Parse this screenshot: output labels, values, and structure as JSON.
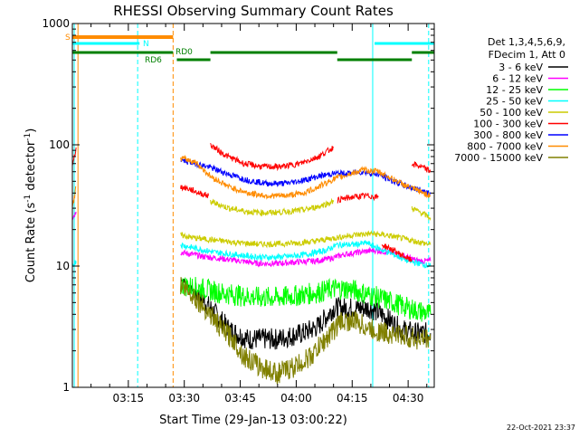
{
  "chart_data": {
    "type": "line",
    "title": "RHESSI Observing Summary Count Rates",
    "xlabel": "Start Time (29-Jan-13 03:00:22)",
    "ylabel_main": "Count Rate (s",
    "ylabel_sup1": "-1",
    "ylabel_mid": " detector",
    "ylabel_sup2": "-1",
    "ylabel_end": ")",
    "yscale": "log",
    "ylim": [
      1,
      1000
    ],
    "y_ticks": [
      {
        "value": 1,
        "label": "1"
      },
      {
        "value": 10,
        "label": "10"
      },
      {
        "value": 100,
        "label": "100"
      },
      {
        "value": 1000,
        "label": "1000"
      }
    ],
    "xlim_minutes": [
      0,
      97
    ],
    "x_ticks": [
      {
        "minute": 15,
        "label": "03:15"
      },
      {
        "minute": 30,
        "label": "03:30"
      },
      {
        "minute": 45,
        "label": "03:45"
      },
      {
        "minute": 60,
        "label": "04:00"
      },
      {
        "minute": 75,
        "label": "04:15"
      },
      {
        "minute": 90,
        "label": "04:30"
      }
    ],
    "legend": {
      "placement": "right",
      "header": [
        "Det 1,3,4,5,6,9,",
        "FDecim 1, Att 0"
      ],
      "entries": [
        {
          "label": "3 - 6 keV",
          "color": "#000000"
        },
        {
          "label": "6 - 12 keV",
          "color": "#ff00ff"
        },
        {
          "label": "12 - 25 keV",
          "color": "#00ff00"
        },
        {
          "label": "25 - 50 keV",
          "color": "#00ffff"
        },
        {
          "label": "50 - 100 keV",
          "color": "#cccc00"
        },
        {
          "label": "100 - 300 keV",
          "color": "#ff0000"
        },
        {
          "label": "300 - 800 keV",
          "color": "#0000ff"
        },
        {
          "label": "800 - 7000 keV",
          "color": "#ff8c00"
        },
        {
          "label": "7000 - 15000 keV",
          "color": "#808000"
        }
      ]
    },
    "flags": [
      {
        "label": "S",
        "color": "#ff8c00",
        "segments": [
          [
            0,
            27
          ]
        ]
      },
      {
        "label": "N",
        "color": "#00ffff",
        "segments": [
          [
            0,
            18
          ],
          [
            81,
            97
          ]
        ]
      },
      {
        "label": "RD6",
        "color": "#008000",
        "segments": [
          [
            0,
            27
          ],
          [
            28,
            37
          ]
        ]
      },
      {
        "label": "RD0",
        "color": "#008000",
        "segments": [
          [
            37,
            71
          ],
          [
            71,
            91
          ],
          [
            91,
            97
          ]
        ]
      }
    ],
    "vlines": [
      {
        "minute": 0.5,
        "color": "#00ffff",
        "style": "solid"
      },
      {
        "minute": 1.5,
        "color": "#ff8c00",
        "style": "solid"
      },
      {
        "minute": 17.5,
        "color": "#00ffff",
        "style": "dashed"
      },
      {
        "minute": 27,
        "color": "#ff8c00",
        "style": "dashed"
      },
      {
        "minute": 80.5,
        "color": "#00ffff",
        "style": "solid"
      },
      {
        "minute": 95.5,
        "color": "#00ffff",
        "style": "dashed"
      }
    ],
    "series": [
      {
        "name": "3 - 6 keV",
        "color": "#000000",
        "segments": [
          [
            [
              29,
              8
            ],
            [
              33,
              6
            ],
            [
              37,
              4.5
            ],
            [
              42,
              3
            ],
            [
              47,
              2.5
            ],
            [
              55,
              2.5
            ],
            [
              62,
              2.8
            ],
            [
              66,
              3.2
            ],
            [
              70,
              4.5
            ],
            [
              75,
              4.5
            ],
            [
              80,
              4.5
            ],
            [
              84,
              3.8
            ],
            [
              88,
              3
            ],
            [
              92,
              2.8
            ],
            [
              96,
              2.8
            ]
          ]
        ]
      },
      {
        "name": "6 - 12 keV",
        "color": "#ff00ff",
        "segments": [
          [
            [
              0,
              25
            ],
            [
              1,
              28
            ]
          ],
          [
            [
              29,
              13
            ],
            [
              35,
              12
            ],
            [
              40,
              11.5
            ],
            [
              45,
              11
            ],
            [
              50,
              10.5
            ],
            [
              55,
              10.5
            ],
            [
              60,
              10.8
            ],
            [
              65,
              11
            ],
            [
              69,
              11.5
            ],
            [
              73,
              12.5
            ],
            [
              77,
              13
            ],
            [
              81,
              13.5
            ],
            [
              85,
              13
            ],
            [
              89,
              12
            ],
            [
              93,
              11
            ],
            [
              96,
              11
            ]
          ]
        ]
      },
      {
        "name": "12 - 25 keV",
        "color": "#00ff00",
        "segments": [
          [
            [
              29,
              7
            ],
            [
              35,
              6.5
            ],
            [
              40,
              6
            ],
            [
              45,
              5.7
            ],
            [
              50,
              5.5
            ],
            [
              55,
              5.5
            ],
            [
              60,
              5.7
            ],
            [
              65,
              6
            ],
            [
              70,
              6.5
            ],
            [
              74,
              6.5
            ],
            [
              78,
              6
            ],
            [
              82,
              5.5
            ],
            [
              86,
              5
            ],
            [
              90,
              4.5
            ],
            [
              96,
              4
            ]
          ]
        ]
      },
      {
        "name": "25 - 50 keV",
        "color": "#00ffff",
        "segments": [
          [
            [
              0,
              10
            ],
            [
              1,
              11
            ]
          ],
          [
            [
              29,
              15
            ],
            [
              33,
              14
            ],
            [
              38,
              13
            ],
            [
              43,
              12.5
            ],
            [
              48,
              12
            ],
            [
              53,
              11.8
            ],
            [
              58,
              12
            ],
            [
              63,
              12.5
            ],
            [
              68,
              13.5
            ],
            [
              71,
              15
            ],
            [
              75,
              15
            ],
            [
              79,
              15.5
            ],
            [
              82,
              14
            ],
            [
              86,
              12.5
            ],
            [
              90,
              11
            ],
            [
              96,
              10
            ]
          ]
        ]
      },
      {
        "name": "50 - 100 keV",
        "color": "#cccc00",
        "segments": [
          [
            [
              29,
              18
            ],
            [
              33,
              17
            ],
            [
              37,
              16.5
            ],
            [
              41,
              16
            ],
            [
              45,
              15.5
            ],
            [
              50,
              15.2
            ],
            [
              55,
              15.2
            ],
            [
              60,
              15.5
            ],
            [
              65,
              16
            ],
            [
              70,
              17
            ],
            [
              75,
              18
            ],
            [
              80,
              18.5
            ],
            [
              84,
              18
            ],
            [
              88,
              17
            ],
            [
              92,
              16
            ],
            [
              96,
              15
            ]
          ],
          [
            [
              37,
              34
            ],
            [
              42,
              30
            ],
            [
              47,
              28
            ],
            [
              52,
              27.5
            ],
            [
              57,
              28
            ],
            [
              62,
              29
            ],
            [
              66,
              31
            ],
            [
              70,
              34
            ]
          ],
          [
            [
              91,
              30
            ],
            [
              94,
              27
            ],
            [
              96,
              25
            ]
          ]
        ]
      },
      {
        "name": "100 - 300 keV",
        "color": "#ff0000",
        "segments": [
          [
            [
              0,
              65
            ],
            [
              1,
              95
            ]
          ],
          [
            [
              29,
              45
            ],
            [
              31.5,
              43
            ],
            [
              34,
              40
            ],
            [
              36.5,
              38
            ]
          ],
          [
            [
              37,
              100
            ],
            [
              41,
              82
            ],
            [
              46,
              70
            ],
            [
              51,
              66
            ],
            [
              56,
              66
            ],
            [
              61,
              70
            ],
            [
              66,
              80
            ],
            [
              70,
              95
            ]
          ],
          [
            [
              71,
              35
            ],
            [
              75,
              37
            ],
            [
              79,
              38
            ],
            [
              82,
              37
            ]
          ],
          [
            [
              83,
              15
            ],
            [
              86,
              13.5
            ],
            [
              89,
              12
            ],
            [
              91,
              11
            ]
          ],
          [
            [
              91,
              70
            ],
            [
              94,
              65
            ],
            [
              96,
              60
            ]
          ]
        ]
      },
      {
        "name": "300 - 800 keV",
        "color": "#0000ff",
        "segments": [
          [
            [
              29,
              75
            ],
            [
              33,
              70
            ],
            [
              37,
              65
            ],
            [
              42,
              57
            ],
            [
              47,
              51
            ],
            [
              52,
              48
            ],
            [
              57,
              48
            ],
            [
              62,
              51
            ],
            [
              66,
              55
            ],
            [
              70,
              58
            ],
            [
              74,
              58
            ],
            [
              78,
              60
            ],
            [
              82,
              57
            ],
            [
              86,
              50
            ],
            [
              90,
              45
            ],
            [
              96,
              40
            ]
          ]
        ]
      },
      {
        "name": "800 - 7000 keV",
        "color": "#ff8c00",
        "segments": [
          [
            [
              0,
              30
            ],
            [
              1,
              45
            ]
          ],
          [
            [
              29,
              78
            ],
            [
              33,
              72
            ],
            [
              37,
              55
            ],
            [
              42,
              45
            ],
            [
              47,
              40
            ],
            [
              52,
              38
            ],
            [
              57,
              38
            ],
            [
              62,
              40
            ],
            [
              66,
              45
            ],
            [
              70,
              52
            ],
            [
              74,
              57
            ],
            [
              78,
              62
            ],
            [
              82,
              60
            ],
            [
              86,
              52
            ],
            [
              90,
              45
            ],
            [
              96,
              38
            ]
          ]
        ]
      },
      {
        "name": "7000 - 15000 keV",
        "color": "#808000",
        "segments": [
          [
            [
              29,
              7
            ],
            [
              33,
              5.5
            ],
            [
              37,
              4
            ],
            [
              40,
              3
            ],
            [
              43,
              2.5
            ],
            [
              46,
              1.8
            ],
            [
              50,
              1.5
            ],
            [
              55,
              1.3
            ],
            [
              60,
              1.5
            ],
            [
              64,
              1.8
            ],
            [
              68,
              2.5
            ],
            [
              72,
              3.5
            ],
            [
              76,
              3.5
            ],
            [
              80,
              3
            ],
            [
              84,
              2.8
            ],
            [
              88,
              2.7
            ],
            [
              92,
              2.5
            ],
            [
              96,
              2.5
            ]
          ]
        ]
      }
    ]
  },
  "footer": {
    "timestamp": "22-Oct-2021 23:37"
  }
}
